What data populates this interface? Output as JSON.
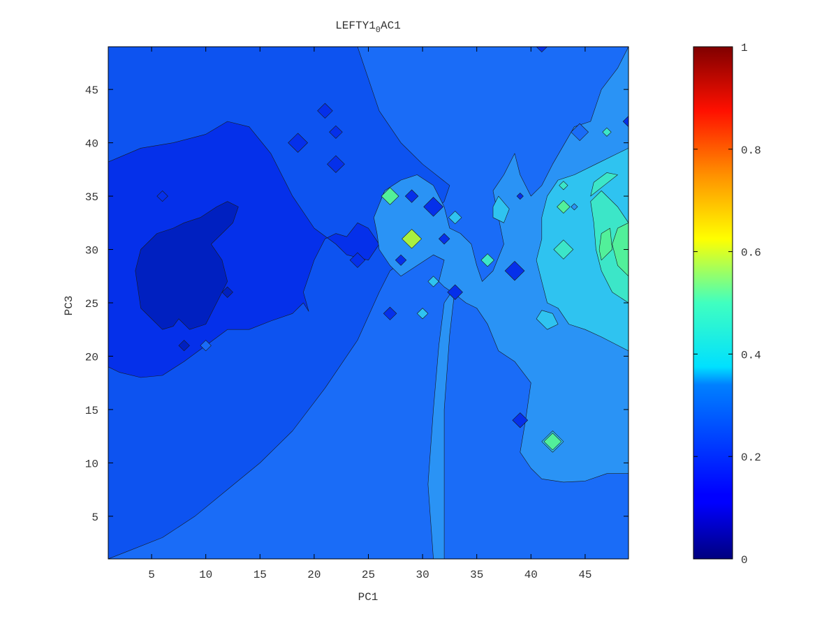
{
  "chart_data": {
    "type": "heatmap",
    "subtype": "filled-contour",
    "title": {
      "main": "LEFTY1",
      "sub": "0",
      "tail": "AC1"
    },
    "xlabel": "PC1",
    "ylabel": "PC3",
    "xlim": [
      1,
      49
    ],
    "ylim": [
      1,
      49
    ],
    "xticks": [
      5,
      10,
      15,
      20,
      25,
      30,
      35,
      40,
      45
    ],
    "yticks": [
      5,
      10,
      15,
      20,
      25,
      30,
      35,
      40,
      45
    ],
    "colormap": "jet",
    "colorbar": {
      "range": [
        0,
        1
      ],
      "ticks": [
        0,
        0.2,
        0.4,
        0.6,
        0.8,
        1
      ],
      "ticklabels": [
        "0",
        "0.2",
        "0.4",
        "0.6",
        "0.8",
        "1"
      ]
    },
    "regions": [
      {
        "level": 0.22,
        "color": "#1a6cf7",
        "points": [
          [
            1,
            1
          ],
          [
            49,
            1
          ],
          [
            49,
            49
          ],
          [
            1,
            49
          ]
        ]
      },
      {
        "level": 0.18,
        "color": "#0d53f0",
        "points": [
          [
            1,
            1
          ],
          [
            3,
            1.8
          ],
          [
            6,
            3
          ],
          [
            9,
            5
          ],
          [
            12,
            7.5
          ],
          [
            15,
            10
          ],
          [
            18,
            13
          ],
          [
            21,
            17
          ],
          [
            24,
            21.5
          ],
          [
            26,
            26
          ],
          [
            27,
            28
          ],
          [
            29,
            29.5
          ],
          [
            30,
            31.5
          ],
          [
            31,
            33.5
          ],
          [
            32,
            34.5
          ],
          [
            32.5,
            36
          ],
          [
            30,
            38
          ],
          [
            28,
            40
          ],
          [
            26,
            43
          ],
          [
            24,
            49
          ],
          [
            1,
            49
          ]
        ]
      },
      {
        "level": 0.13,
        "color": "#0530ea",
        "points": [
          [
            1,
            19
          ],
          [
            2,
            18.5
          ],
          [
            4,
            18
          ],
          [
            6,
            18.2
          ],
          [
            8,
            19.5
          ],
          [
            10,
            21
          ],
          [
            12,
            22.5
          ],
          [
            14,
            22.5
          ],
          [
            16,
            23.3
          ],
          [
            18,
            24
          ],
          [
            19,
            25
          ],
          [
            19.5,
            24.2
          ],
          [
            19,
            26
          ],
          [
            20,
            29
          ],
          [
            21,
            31
          ],
          [
            22,
            31.5
          ],
          [
            23,
            31.2
          ],
          [
            24,
            32.5
          ],
          [
            25,
            32
          ],
          [
            26,
            30.5
          ],
          [
            25,
            29
          ],
          [
            23,
            29.5
          ],
          [
            22,
            30.5
          ],
          [
            20,
            32
          ],
          [
            18,
            35
          ],
          [
            16,
            39
          ],
          [
            14,
            41.5
          ],
          [
            12,
            42
          ],
          [
            10,
            40.8
          ],
          [
            7,
            40
          ],
          [
            4,
            39.5
          ],
          [
            1,
            38.2
          ]
        ]
      },
      {
        "level": 0.08,
        "color": "#0020c0",
        "points": [
          [
            3.5,
            28
          ],
          [
            4,
            24.5
          ],
          [
            5,
            23.5
          ],
          [
            6,
            22.5
          ],
          [
            7,
            22.8
          ],
          [
            7.5,
            23.5
          ],
          [
            8.5,
            22.5
          ],
          [
            10,
            23
          ],
          [
            11,
            25
          ],
          [
            12,
            27
          ],
          [
            11.5,
            29
          ],
          [
            10.5,
            30.5
          ],
          [
            11.5,
            31.5
          ],
          [
            12.5,
            32.5
          ],
          [
            13,
            34
          ],
          [
            12,
            34.5
          ],
          [
            11,
            34
          ],
          [
            9.5,
            33
          ],
          [
            8,
            32.5
          ],
          [
            7,
            32
          ],
          [
            5.5,
            31.5
          ],
          [
            4,
            30
          ]
        ]
      },
      {
        "level": 0.3,
        "color": "#2a93f5",
        "points": [
          [
            25.5,
            33
          ],
          [
            26.5,
            35.5
          ],
          [
            28,
            36.5
          ],
          [
            29.5,
            37
          ],
          [
            31,
            36
          ],
          [
            32,
            34
          ],
          [
            32.5,
            32
          ],
          [
            33.5,
            31.5
          ],
          [
            34.5,
            30.5
          ],
          [
            35,
            28.5
          ],
          [
            35.5,
            27
          ],
          [
            36.5,
            28
          ],
          [
            37.5,
            30.5
          ],
          [
            37,
            33
          ],
          [
            36.5,
            35.5
          ],
          [
            37.5,
            37
          ],
          [
            38.5,
            39
          ],
          [
            39,
            37
          ],
          [
            40,
            35
          ],
          [
            41,
            36
          ],
          [
            42,
            38
          ],
          [
            44,
            41.5
          ],
          [
            45.5,
            42
          ],
          [
            46.5,
            45
          ],
          [
            48,
            47
          ],
          [
            49,
            49
          ],
          [
            49,
            9
          ],
          [
            47,
            9
          ],
          [
            45,
            8.3
          ],
          [
            43,
            8.2
          ],
          [
            41,
            8.5
          ],
          [
            40,
            9.5
          ],
          [
            39,
            11
          ],
          [
            39.5,
            14
          ],
          [
            40,
            17.5
          ],
          [
            38.5,
            19.5
          ],
          [
            37,
            20.5
          ],
          [
            36,
            23
          ],
          [
            35,
            24.5
          ],
          [
            34,
            25
          ],
          [
            33,
            25.8
          ],
          [
            32,
            26.5
          ],
          [
            31.5,
            27
          ],
          [
            32,
            29
          ],
          [
            31,
            29.5
          ],
          [
            29.5,
            28.5
          ],
          [
            28,
            27.5
          ],
          [
            27,
            28.5
          ],
          [
            26,
            30
          ],
          [
            25.8,
            31.5
          ]
        ]
      },
      {
        "level": 0.3,
        "color": "#2a93f5",
        "points": [
          [
            31,
            1
          ],
          [
            30.5,
            8
          ],
          [
            31,
            15
          ],
          [
            31.5,
            21
          ],
          [
            32,
            25
          ],
          [
            33,
            26.5
          ],
          [
            32.5,
            22
          ],
          [
            32,
            15
          ],
          [
            32,
            8
          ],
          [
            32,
            1
          ]
        ]
      },
      {
        "level": 0.36,
        "color": "#2fc3f0",
        "points": [
          [
            49,
            20.5
          ],
          [
            46.5,
            21.8
          ],
          [
            45,
            22.5
          ],
          [
            43.5,
            23
          ],
          [
            42.5,
            24.5
          ],
          [
            41.5,
            25
          ],
          [
            41,
            27
          ],
          [
            40.5,
            29
          ],
          [
            41,
            31
          ],
          [
            41,
            33
          ],
          [
            41.5,
            35
          ],
          [
            42.5,
            36.5
          ],
          [
            44,
            37
          ],
          [
            46,
            38
          ],
          [
            48,
            39
          ],
          [
            49,
            39.5
          ]
        ]
      },
      {
        "level": 0.36,
        "color": "#2fc3f0",
        "points": [
          [
            40.5,
            23.5
          ],
          [
            41.5,
            22.5
          ],
          [
            42.5,
            23
          ],
          [
            42,
            24
          ],
          [
            41,
            24.3
          ]
        ]
      },
      {
        "level": 0.36,
        "color": "#2fc3f0",
        "points": [
          [
            36.5,
            33
          ],
          [
            37.5,
            32.5
          ],
          [
            38,
            33.8
          ],
          [
            37,
            35
          ],
          [
            36.5,
            34
          ]
        ]
      },
      {
        "level": 0.36,
        "color": "#2fc3f0",
        "points": [
          [
            41,
            12
          ],
          [
            42,
            13
          ],
          [
            43,
            12
          ],
          [
            42,
            11
          ]
        ]
      },
      {
        "level": 0.42,
        "color": "#3ce6c8",
        "points": [
          [
            49,
            25
          ],
          [
            47.5,
            26
          ],
          [
            46.5,
            28
          ],
          [
            46,
            30
          ],
          [
            45.8,
            32.5
          ],
          [
            45.5,
            34.5
          ],
          [
            46.5,
            35.5
          ],
          [
            48,
            34
          ],
          [
            49,
            32.5
          ]
        ]
      },
      {
        "level": 0.42,
        "color": "#3ce6c8",
        "points": [
          [
            45.5,
            35
          ],
          [
            47,
            36.2
          ],
          [
            48,
            37
          ],
          [
            47,
            37.2
          ],
          [
            45.8,
            36.3
          ]
        ]
      },
      {
        "level": 0.48,
        "color": "#52f09a",
        "points": [
          [
            49,
            27.5
          ],
          [
            48,
            28.5
          ],
          [
            47.5,
            30.5
          ],
          [
            48,
            32
          ],
          [
            49,
            32.5
          ]
        ]
      },
      {
        "level": 0.48,
        "color": "#52f09a",
        "points": [
          [
            46.5,
            29
          ],
          [
            47.5,
            30
          ],
          [
            47.3,
            32
          ],
          [
            46.5,
            31.5
          ],
          [
            46.3,
            30
          ]
        ]
      }
    ],
    "points": [
      {
        "x": 6,
        "y": 35,
        "r": 0.5,
        "color": "#0530ea"
      },
      {
        "x": 8,
        "y": 21,
        "r": 0.5,
        "color": "#0020c0"
      },
      {
        "x": 12,
        "y": 26,
        "r": 0.5,
        "color": "#0020c0"
      },
      {
        "x": 10,
        "y": 21,
        "r": 0.5,
        "color": "#1a6cf7"
      },
      {
        "x": 21,
        "y": 43,
        "r": 0.7,
        "color": "#0530ea"
      },
      {
        "x": 22,
        "y": 41,
        "r": 0.6,
        "color": "#0530ea"
      },
      {
        "x": 22,
        "y": 38,
        "r": 0.8,
        "color": "#0530ea"
      },
      {
        "x": 18.5,
        "y": 40,
        "r": 0.9,
        "color": "#0530ea"
      },
      {
        "x": 24,
        "y": 29,
        "r": 0.7,
        "color": "#0530ea"
      },
      {
        "x": 27,
        "y": 35,
        "r": 0.8,
        "color": "#52f09a"
      },
      {
        "x": 29,
        "y": 31,
        "r": 0.9,
        "color": "#a8f040"
      },
      {
        "x": 28,
        "y": 29,
        "r": 0.5,
        "color": "#0530ea"
      },
      {
        "x": 29,
        "y": 35,
        "r": 0.6,
        "color": "#0530ea"
      },
      {
        "x": 31,
        "y": 34,
        "r": 0.9,
        "color": "#0530ea"
      },
      {
        "x": 32,
        "y": 31,
        "r": 0.5,
        "color": "#0530ea"
      },
      {
        "x": 27,
        "y": 24,
        "r": 0.6,
        "color": "#0530ea"
      },
      {
        "x": 30,
        "y": 24,
        "r": 0.5,
        "color": "#2fc3f0"
      },
      {
        "x": 31,
        "y": 27,
        "r": 0.5,
        "color": "#2fc3f0"
      },
      {
        "x": 33,
        "y": 26,
        "r": 0.7,
        "color": "#0530ea"
      },
      {
        "x": 33,
        "y": 33,
        "r": 0.6,
        "color": "#2fc3f0"
      },
      {
        "x": 36,
        "y": 29,
        "r": 0.6,
        "color": "#3ce6c8"
      },
      {
        "x": 38.5,
        "y": 28,
        "r": 0.9,
        "color": "#0530ea"
      },
      {
        "x": 39,
        "y": 14,
        "r": 0.7,
        "color": "#0530ea"
      },
      {
        "x": 42,
        "y": 12,
        "r": 0.8,
        "color": "#52f09a"
      },
      {
        "x": 44.5,
        "y": 41,
        "r": 0.8,
        "color": "#1a6cf7"
      },
      {
        "x": 43,
        "y": 34,
        "r": 0.6,
        "color": "#52f09a"
      },
      {
        "x": 43,
        "y": 36,
        "r": 0.4,
        "color": "#3ce6c8"
      },
      {
        "x": 43,
        "y": 30,
        "r": 0.9,
        "color": "#3ce6c8"
      },
      {
        "x": 44,
        "y": 34,
        "r": 0.3,
        "color": "#2a93f5"
      },
      {
        "x": 47,
        "y": 41,
        "r": 0.4,
        "color": "#3ce6c8"
      },
      {
        "x": 39,
        "y": 35,
        "r": 0.3,
        "color": "#0530ea"
      },
      {
        "x": 49,
        "y": 42,
        "r": 0.5,
        "color": "#0530ea"
      },
      {
        "x": 41,
        "y": 49,
        "r": 0.5,
        "color": "#0530ea"
      }
    ]
  }
}
